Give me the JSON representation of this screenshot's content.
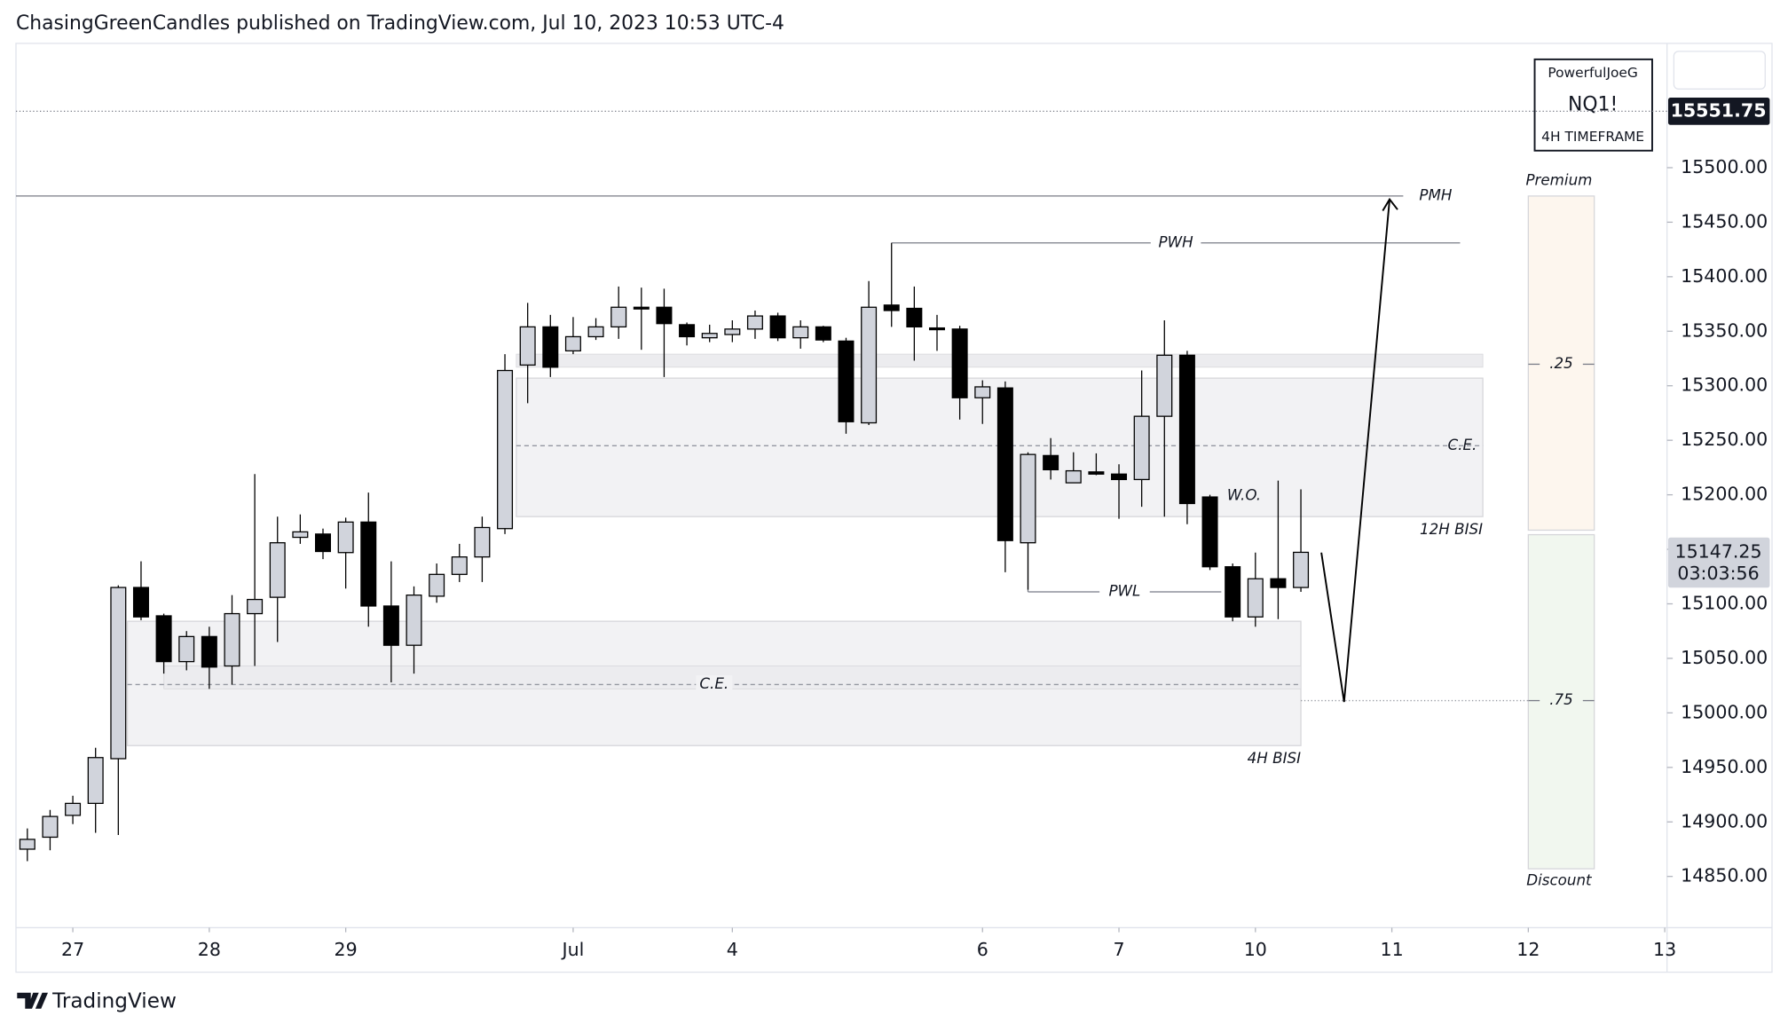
{
  "header": "ChasingGreenCandles published on TradingView.com, Jul 10, 2023 10:53 UTC-4",
  "footer": "TradingView",
  "watermark": {
    "author": "PowerfulJoeG",
    "symbol": "NQ1!",
    "timeframe": "4H TIMEFRAME"
  },
  "chart_data": {
    "type": "candlestick",
    "x": [
      0,
      1,
      2,
      3,
      4,
      5,
      6,
      7,
      8,
      9,
      10,
      11,
      12,
      13,
      14,
      15,
      16,
      17,
      18,
      19,
      20,
      21,
      22,
      23,
      24,
      25,
      26,
      27,
      28,
      29,
      30,
      31,
      32,
      33,
      34,
      35,
      36,
      37,
      38,
      39,
      40,
      41,
      42,
      43,
      44,
      45,
      46,
      47,
      48,
      49,
      50,
      51,
      52,
      53,
      54,
      55,
      56
    ],
    "open": [
      14875,
      14886,
      14906,
      14917,
      14958,
      15115,
      15089,
      15047,
      15070,
      15043,
      15091,
      15106,
      15161,
      15164,
      15147,
      15175,
      15098,
      15062,
      15107,
      15127,
      15143,
      15169,
      15319,
      15354,
      15332,
      15345,
      15354,
      15372,
      15372,
      15356,
      15344,
      15347,
      15352,
      15364,
      15344,
      15354,
      15341,
      15266,
      15374,
      15371,
      15353,
      15352,
      15289,
      15298,
      15156,
      15236,
      15211,
      15221,
      15219,
      15214,
      15272,
      15328,
      15198,
      15134,
      15088,
      15123,
      15115
    ],
    "high": [
      14894,
      14911,
      14924,
      14968,
      15117,
      15139,
      15091,
      15075,
      15079,
      15108,
      15219,
      15180,
      15182,
      15169,
      15179,
      15202,
      15139,
      15116,
      15137,
      15155,
      15180,
      15329,
      15376,
      15365,
      15363,
      15362,
      15391,
      15390,
      15389,
      15358,
      15356,
      15360,
      15369,
      15367,
      15360,
      15355,
      15344,
      15396,
      15431,
      15391,
      15365,
      15355,
      15305,
      15304,
      15239,
      15252,
      15239,
      15238,
      15228,
      15314,
      15360,
      15332,
      15200,
      15137,
      15147,
      15213,
      15205
    ],
    "low": [
      14864,
      14874,
      14898,
      14890,
      14888,
      15085,
      15036,
      15039,
      15022,
      15026,
      15043,
      15065,
      15155,
      15141,
      15114,
      15079,
      15028,
      15036,
      15101,
      15120,
      15120,
      15164,
      15284,
      15308,
      15329,
      15342,
      15343,
      15333,
      15308,
      15337,
      15340,
      15340,
      15343,
      15341,
      15334,
      15340,
      15256,
      15264,
      15354,
      15323,
      15332,
      15269,
      15265,
      15129,
      15113,
      15214,
      15211,
      15218,
      15178,
      15189,
      15180,
      15173,
      15131,
      15084,
      15079,
      15086,
      15111
    ],
    "close": [
      14884,
      14905,
      14917,
      14959,
      15115,
      15088,
      15047,
      15070,
      15042,
      15091,
      15104,
      15156,
      15166,
      15148,
      15175,
      15098,
      15062,
      15108,
      15127,
      15143,
      15170,
      15314,
      15354,
      15317,
      15345,
      15354,
      15372,
      15371,
      15357,
      15345,
      15348,
      15352,
      15364,
      15344,
      15354,
      15342,
      15267,
      15372,
      15369,
      15354,
      15352,
      15289,
      15299,
      15158,
      15237,
      15223,
      15222,
      15219,
      15214,
      15272,
      15328,
      15192,
      15134,
      15088,
      15123,
      15115,
      15147.25
    ],
    "up_color": "#d1d4dc",
    "down_color": "#000000",
    "xlim": [
      -0.5,
      72.1
    ],
    "xticks": [
      {
        "value": 2,
        "label": "27"
      },
      {
        "value": 8,
        "label": "28"
      },
      {
        "value": 14,
        "label": "29"
      },
      {
        "value": 24,
        "label": "Jul"
      },
      {
        "value": 31,
        "label": "4"
      },
      {
        "value": 42,
        "label": "6"
      },
      {
        "value": 48,
        "label": "7"
      },
      {
        "value": 54,
        "label": "10"
      },
      {
        "value": 60,
        "label": "11"
      },
      {
        "value": 66,
        "label": "12"
      },
      {
        "value": 72,
        "label": "13"
      }
    ],
    "ylim": [
      14803,
      15614
    ],
    "yticks": [
      {
        "value": 14850,
        "label": "14850.00"
      },
      {
        "value": 14900,
        "label": "14900.00"
      },
      {
        "value": 14950,
        "label": "14950.00"
      },
      {
        "value": 15000,
        "label": "15000.00"
      },
      {
        "value": 15050,
        "label": "15050.00"
      },
      {
        "value": 15100,
        "label": "15100.00"
      },
      {
        "value": 15150,
        "label": "15150.00"
      },
      {
        "value": 15200,
        "label": "15200.00"
      },
      {
        "value": 15250,
        "label": "15250.00"
      },
      {
        "value": 15300,
        "label": "15300.00"
      },
      {
        "value": 15350,
        "label": "15350.00"
      },
      {
        "value": 15400,
        "label": "15400.00"
      },
      {
        "value": 15450,
        "label": "15450.00"
      },
      {
        "value": 15500,
        "label": "15500.00"
      }
    ],
    "marked_price": 15551.75,
    "last_price": 15147.25,
    "countdown": "03:03:56",
    "lines": [
      {
        "label": "PMH",
        "y": 15474,
        "x": [
          -0.5,
          60.5
        ]
      },
      {
        "label": "PWH",
        "y": 15431,
        "x": [
          38,
          63
        ]
      },
      {
        "label": "PWL",
        "y": 15111,
        "x": [
          44,
          52.5
        ]
      }
    ],
    "texts": [
      {
        "label": "W.O.",
        "x": 53.5,
        "y": 15199
      }
    ],
    "zones": [
      {
        "label": "12H BISI",
        "mid_label": "C.E.",
        "ylim": [
          15180,
          15307
        ],
        "mid": 15245,
        "x": [
          21.5,
          64
        ],
        "strip": [
          15317,
          15329
        ]
      },
      {
        "label": "4H BISI",
        "mid_label": "C.E.",
        "ylim": [
          14970,
          15084
        ],
        "mid": 15026,
        "x": [
          4.4,
          56
        ],
        "strip": [
          15022,
          15043
        ]
      }
    ],
    "path": {
      "x": [
        56.9,
        57.9,
        59.9
      ],
      "y": [
        15147,
        15010,
        15471
      ]
    },
    "range": {
      "high": 15474,
      "low": 14857,
      "top_label": "Premium",
      "bottom_label": "Discount",
      "levels": [
        {
          "value": 0.25,
          "label": ".25"
        },
        {
          "value": 0.75,
          "label": ".75"
        }
      ]
    }
  }
}
